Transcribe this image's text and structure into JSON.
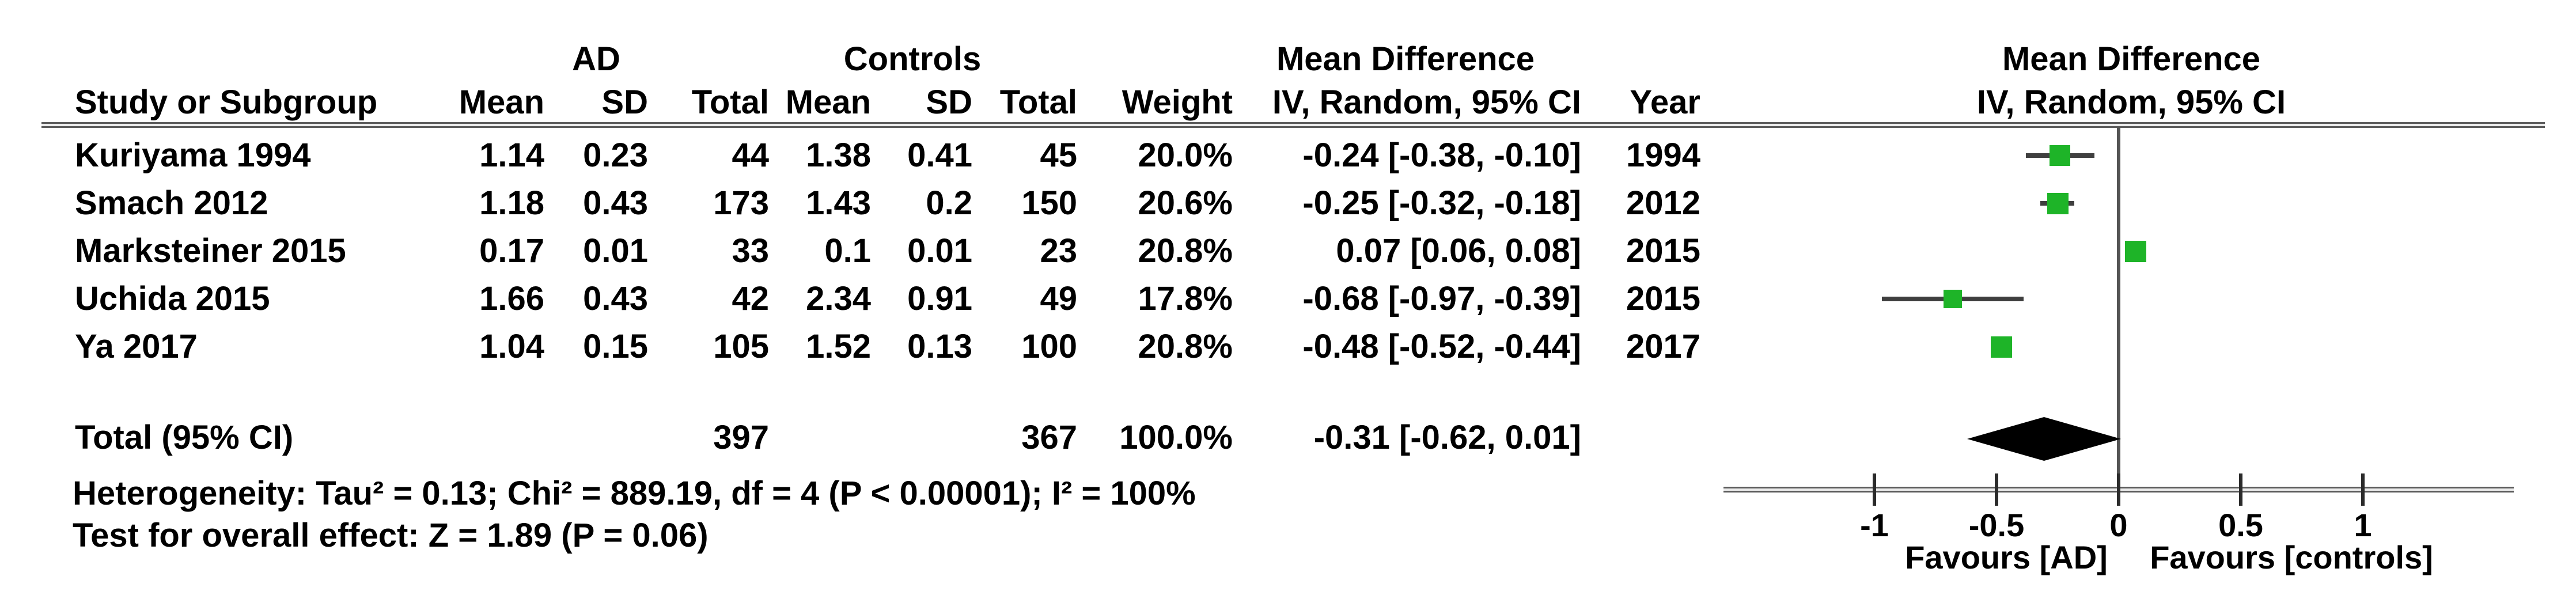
{
  "header": {
    "group_ad": "AD",
    "group_controls": "Controls",
    "group_md_left": "Mean Difference",
    "group_md_right": "Mean Difference",
    "col_study": "Study or Subgroup",
    "col_mean_ad": "Mean",
    "col_sd_ad": "SD",
    "col_total_ad": "Total",
    "col_mean_c": "Mean",
    "col_sd_c": "SD",
    "col_total_c": "Total",
    "col_weight": "Weight",
    "col_ci": "IV, Random, 95% CI",
    "col_year": "Year",
    "col_ci_right": "IV, Random, 95% CI"
  },
  "rows": [
    {
      "study": "Kuriyama 1994",
      "ad_mean": "1.14",
      "ad_sd": "0.23",
      "ad_total": "44",
      "c_mean": "1.38",
      "c_sd": "0.41",
      "c_total": "45",
      "weight": "20.0%",
      "ci_text": "-0.24 [-0.38, -0.10]",
      "year": "1994"
    },
    {
      "study": "Smach 2012",
      "ad_mean": "1.18",
      "ad_sd": "0.43",
      "ad_total": "173",
      "c_mean": "1.43",
      "c_sd": "0.2",
      "c_total": "150",
      "weight": "20.6%",
      "ci_text": "-0.25 [-0.32, -0.18]",
      "year": "2012"
    },
    {
      "study": "Marksteiner 2015",
      "ad_mean": "0.17",
      "ad_sd": "0.01",
      "ad_total": "33",
      "c_mean": "0.1",
      "c_sd": "0.01",
      "c_total": "23",
      "weight": "20.8%",
      "ci_text": "0.07 [0.06, 0.08]",
      "year": "2015"
    },
    {
      "study": "Uchida 2015",
      "ad_mean": "1.66",
      "ad_sd": "0.43",
      "ad_total": "42",
      "c_mean": "2.34",
      "c_sd": "0.91",
      "c_total": "49",
      "weight": "17.8%",
      "ci_text": "-0.68 [-0.97, -0.39]",
      "year": "2015"
    },
    {
      "study": "Ya 2017",
      "ad_mean": "1.04",
      "ad_sd": "0.15",
      "ad_total": "105",
      "c_mean": "1.52",
      "c_sd": "0.13",
      "c_total": "100",
      "weight": "20.8%",
      "ci_text": "-0.48 [-0.52, -0.44]",
      "year": "2017"
    }
  ],
  "total": {
    "study": "Total (95% CI)",
    "ad_total": "397",
    "c_total": "367",
    "weight": "100.0%",
    "ci_text": "-0.31 [-0.62, 0.01]"
  },
  "footnotes": {
    "heterogeneity": "Heterogeneity: Tau² = 0.13; Chi² = 889.19, df = 4 (P < 0.00001); I² = 100%",
    "overall_effect": "Test for overall effect: Z = 1.89 (P = 0.06)"
  },
  "axis": {
    "favours_left": "Favours [AD]",
    "favours_right": "Favours [controls]"
  },
  "colors": {
    "marker_green": "#1eb428",
    "ci_line": "#3f3f3f",
    "diamond": "#000000"
  },
  "chart_data": {
    "type": "scatter",
    "title": "Forest plot — Mean Difference, IV, Random, 95% CI",
    "x_ticks": [
      -1,
      -0.5,
      0,
      0.5,
      1
    ],
    "x_tick_labels": [
      "-1",
      "-0.5",
      "0",
      "0.5",
      "1"
    ],
    "xlim": [
      -1.62,
      1.62
    ],
    "xlabel_left": "Favours [AD]",
    "xlabel_right": "Favours [controls]",
    "series": [
      {
        "name": "Kuriyama 1994",
        "md": -0.24,
        "ci_low": -0.38,
        "ci_high": -0.1,
        "weight_pct": 20.0,
        "year": 1994
      },
      {
        "name": "Smach 2012",
        "md": -0.25,
        "ci_low": -0.32,
        "ci_high": -0.18,
        "weight_pct": 20.6,
        "year": 2012
      },
      {
        "name": "Marksteiner 2015",
        "md": 0.07,
        "ci_low": 0.06,
        "ci_high": 0.08,
        "weight_pct": 20.8,
        "year": 2015
      },
      {
        "name": "Uchida 2015",
        "md": -0.68,
        "ci_low": -0.97,
        "ci_high": -0.39,
        "weight_pct": 17.8,
        "year": 2015
      },
      {
        "name": "Ya 2017",
        "md": -0.48,
        "ci_low": -0.52,
        "ci_high": -0.44,
        "weight_pct": 20.8,
        "year": 2017
      }
    ],
    "summary": {
      "name": "Total (95% CI)",
      "md": -0.31,
      "ci_low": -0.62,
      "ci_high": 0.01,
      "weight_pct": 100.0
    },
    "heterogeneity": {
      "tau2": 0.13,
      "chi2": 889.19,
      "df": 4,
      "p": "< 0.00001",
      "i2_pct": 100
    },
    "overall_effect": {
      "z": 1.89,
      "p": 0.06
    }
  }
}
